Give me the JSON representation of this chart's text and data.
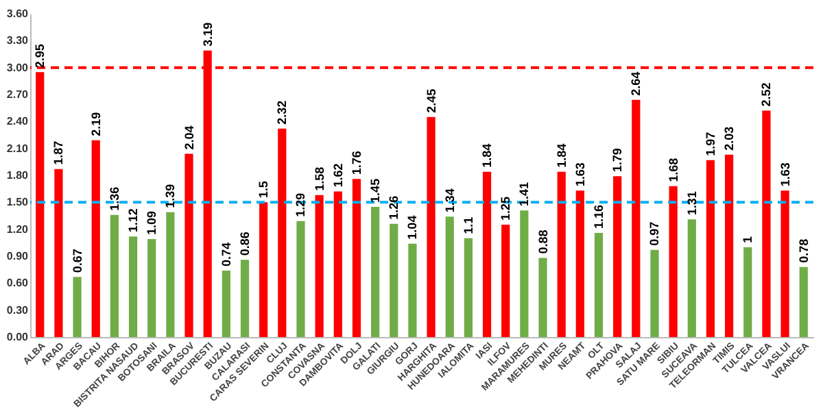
{
  "chart_data": {
    "type": "bar",
    "categories": [
      "ALBA",
      "ARAD",
      "ARGES",
      "BACAU",
      "BIHOR",
      "BISTRITA NASAUD",
      "BOTOSANI",
      "BRAILA",
      "BRASOV",
      "BUCURESTI",
      "BUZAU",
      "CALARASI",
      "CARAS SEVERIN",
      "CLUJ",
      "CONSTANTA",
      "COVASNA",
      "DAMBOVITA",
      "DOLJ",
      "GALATI",
      "GIURGIU",
      "GORJ",
      "HARGHITA",
      "HUNEDOARA",
      "IALOMITA",
      "IASI",
      "ILFOV",
      "MARAMURES",
      "MEHEDINTI",
      "MURES",
      "NEAMT",
      "OLT",
      "PRAHOVA",
      "SALAJ",
      "SATU MARE",
      "SIBIU",
      "SUCEAVA",
      "TELEORMAN",
      "TIMIS",
      "TULCEA",
      "VALCEA",
      "VASLUI",
      "VRANCEA"
    ],
    "values": [
      2.95,
      1.87,
      0.67,
      2.19,
      1.36,
      1.12,
      1.09,
      1.39,
      2.04,
      3.19,
      0.74,
      0.86,
      1.5,
      2.32,
      1.29,
      1.58,
      1.62,
      1.76,
      1.45,
      1.26,
      1.04,
      2.45,
      1.34,
      1.1,
      1.84,
      1.25,
      1.41,
      0.88,
      1.84,
      1.63,
      1.16,
      1.79,
      2.64,
      0.97,
      1.68,
      1.31,
      1.97,
      2.03,
      1,
      2.52,
      1.63,
      0.78
    ],
    "colors": [
      "#ff0000",
      "#ff0000",
      "#70ad47",
      "#ff0000",
      "#70ad47",
      "#70ad47",
      "#70ad47",
      "#70ad47",
      "#ff0000",
      "#ff0000",
      "#70ad47",
      "#70ad47",
      "#ff0000",
      "#ff0000",
      "#70ad47",
      "#ff0000",
      "#ff0000",
      "#ff0000",
      "#70ad47",
      "#70ad47",
      "#70ad47",
      "#ff0000",
      "#70ad47",
      "#70ad47",
      "#ff0000",
      "#ff0000",
      "#70ad47",
      "#70ad47",
      "#ff0000",
      "#ff0000",
      "#70ad47",
      "#ff0000",
      "#ff0000",
      "#70ad47",
      "#ff0000",
      "#70ad47",
      "#ff0000",
      "#ff0000",
      "#70ad47",
      "#ff0000",
      "#ff0000",
      "#70ad47"
    ],
    "ylim": [
      0,
      3.6
    ],
    "yticks": [
      {
        "value": 0,
        "label": "0.00"
      },
      {
        "value": 0.3,
        "label": "0.30"
      },
      {
        "value": 0.6,
        "label": "0.60"
      },
      {
        "value": 0.9,
        "label": "0.90"
      },
      {
        "value": 1.2,
        "label": "1.20"
      },
      {
        "value": 1.5,
        "label": "1.50"
      },
      {
        "value": 1.8,
        "label": "1.80"
      },
      {
        "value": 2.1,
        "label": "2.10"
      },
      {
        "value": 2.4,
        "label": "2.40"
      },
      {
        "value": 2.7,
        "label": "2.70"
      },
      {
        "value": 3,
        "label": "3.00"
      },
      {
        "value": 3.3,
        "label": "3.30"
      },
      {
        "value": 3.6,
        "label": "3.60"
      }
    ],
    "ref_lines": [
      {
        "axis": "y",
        "value": 3,
        "color": "#ff0000",
        "line_style": "dashed"
      },
      {
        "axis": "y",
        "value": 1.5,
        "color": "#00b0f0",
        "line_style": "dashed"
      }
    ],
    "data_labels": true,
    "grid": false
  }
}
